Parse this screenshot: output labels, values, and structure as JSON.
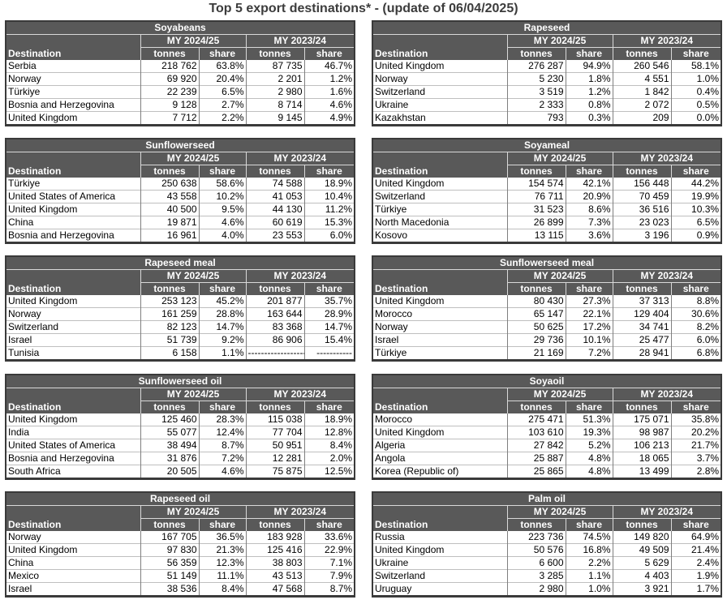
{
  "title": "Top 5 export destinations* - (update of 06/04/2025)",
  "labels": {
    "destination": "Destination",
    "my_current": "MY 2024/25",
    "my_previous": "MY 2023/24",
    "tonnes": "tonnes",
    "share": "share"
  },
  "panels": [
    {
      "product": "Soyabeans",
      "rows": [
        [
          "Serbia",
          "218 762",
          "63.8%",
          "87 735",
          "46.7%"
        ],
        [
          "Norway",
          "69 920",
          "20.4%",
          "2 201",
          "1.2%"
        ],
        [
          "Türkiye",
          "22 239",
          "6.5%",
          "2 980",
          "1.6%"
        ],
        [
          "Bosnia and Herzegovina",
          "9 128",
          "2.7%",
          "8 714",
          "4.6%"
        ],
        [
          "United Kingdom",
          "7 712",
          "2.2%",
          "9 145",
          "4.9%"
        ]
      ]
    },
    {
      "product": "Rapeseed",
      "rows": [
        [
          "United Kingdom",
          "276 287",
          "94.9%",
          "260 546",
          "58.1%"
        ],
        [
          "Norway",
          "5 230",
          "1.8%",
          "4 551",
          "1.0%"
        ],
        [
          "Switzerland",
          "3 519",
          "1.2%",
          "1 842",
          "0.4%"
        ],
        [
          "Ukraine",
          "2 333",
          "0.8%",
          "2 072",
          "0.5%"
        ],
        [
          "Kazakhstan",
          "793",
          "0.3%",
          "209",
          "0.0%"
        ]
      ]
    },
    {
      "product": "Sunflowerseed",
      "rows": [
        [
          "Türkiye",
          "250 638",
          "58.6%",
          "74 588",
          "18.9%"
        ],
        [
          "United States of America",
          "43 558",
          "10.2%",
          "41 053",
          "10.4%"
        ],
        [
          "United Kingdom",
          "40 500",
          "9.5%",
          "44 130",
          "11.2%"
        ],
        [
          "China",
          "19 871",
          "4.6%",
          "60 619",
          "15.3%"
        ],
        [
          "Bosnia and Herzegovina",
          "16 961",
          "4.0%",
          "23 553",
          "6.0%"
        ]
      ]
    },
    {
      "product": "Soyameal",
      "rows": [
        [
          "United Kingdom",
          "154 574",
          "42.1%",
          "156 448",
          "44.2%"
        ],
        [
          "Switzerland",
          "76 711",
          "20.9%",
          "70 459",
          "19.9%"
        ],
        [
          "Türkiye",
          "31 523",
          "8.6%",
          "36 516",
          "10.3%"
        ],
        [
          "North Macedonia",
          "26 899",
          "7.3%",
          "23 023",
          "6.5%"
        ],
        [
          "Kosovo",
          "13 115",
          "3.6%",
          "3 196",
          "0.9%"
        ]
      ]
    },
    {
      "product": "Rapeseed meal",
      "rows": [
        [
          "United Kingdom",
          "253 123",
          "45.2%",
          "201 877",
          "35.7%"
        ],
        [
          "Norway",
          "161 259",
          "28.8%",
          "163 644",
          "28.9%"
        ],
        [
          "Switzerland",
          "82 123",
          "14.7%",
          "83 368",
          "14.7%"
        ],
        [
          "Israel",
          "51 739",
          "9.2%",
          "86 906",
          "15.4%"
        ],
        [
          "Tunisia",
          "6 158",
          "1.1%",
          "------------------",
          "-----------"
        ]
      ]
    },
    {
      "product": "Sunflowerseed meal",
      "rows": [
        [
          "United Kingdom",
          "80 430",
          "27.3%",
          "37 313",
          "8.8%"
        ],
        [
          "Morocco",
          "65 147",
          "22.1%",
          "129 404",
          "30.6%"
        ],
        [
          "Norway",
          "50 625",
          "17.2%",
          "34 741",
          "8.2%"
        ],
        [
          "Israel",
          "29 736",
          "10.1%",
          "25 477",
          "6.0%"
        ],
        [
          "Türkiye",
          "21 169",
          "7.2%",
          "28 941",
          "6.8%"
        ]
      ]
    },
    {
      "product": "Sunflowerseed oil",
      "rows": [
        [
          "United Kingdom",
          "125 460",
          "28.3%",
          "115 038",
          "18.9%"
        ],
        [
          "India",
          "55 077",
          "12.4%",
          "77 704",
          "12.8%"
        ],
        [
          "United States of America",
          "38 494",
          "8.7%",
          "50 951",
          "8.4%"
        ],
        [
          "Bosnia and Herzegovina",
          "31 876",
          "7.2%",
          "12 281",
          "2.0%"
        ],
        [
          "South Africa",
          "20 505",
          "4.6%",
          "75 875",
          "12.5%"
        ]
      ]
    },
    {
      "product": "Soyaoil",
      "rows": [
        [
          "Morocco",
          "275 471",
          "51.3%",
          "175 071",
          "35.8%"
        ],
        [
          "United Kingdom",
          "103 610",
          "19.3%",
          "98 987",
          "20.2%"
        ],
        [
          "Algeria",
          "27 842",
          "5.2%",
          "106 213",
          "21.7%"
        ],
        [
          "Angola",
          "25 887",
          "4.8%",
          "18 065",
          "3.7%"
        ],
        [
          "Korea (Republic of)",
          "25 865",
          "4.8%",
          "13 499",
          "2.8%"
        ]
      ]
    },
    {
      "product": "Rapeseed oil",
      "rows": [
        [
          "Norway",
          "167 705",
          "36.5%",
          "183 928",
          "33.6%"
        ],
        [
          "United Kingdom",
          "97 830",
          "21.3%",
          "125 416",
          "22.9%"
        ],
        [
          "China",
          "56 359",
          "12.3%",
          "38 803",
          "7.1%"
        ],
        [
          "Mexico",
          "51 149",
          "11.1%",
          "43 513",
          "7.9%"
        ],
        [
          "Israel",
          "38 536",
          "8.4%",
          "47 568",
          "8.7%"
        ]
      ]
    },
    {
      "product": "Palm oil",
      "rows": [
        [
          "Russia",
          "223 736",
          "74.5%",
          "149 820",
          "64.9%"
        ],
        [
          "United Kingdom",
          "50 576",
          "16.8%",
          "49 509",
          "21.4%"
        ],
        [
          "Ukraine",
          "6 600",
          "2.2%",
          "5 629",
          "2.4%"
        ],
        [
          "Switzerland",
          "3 285",
          "1.1%",
          "4 403",
          "1.9%"
        ],
        [
          "Uruguay",
          "2 980",
          "1.0%",
          "3 921",
          "1.7%"
        ]
      ]
    }
  ]
}
